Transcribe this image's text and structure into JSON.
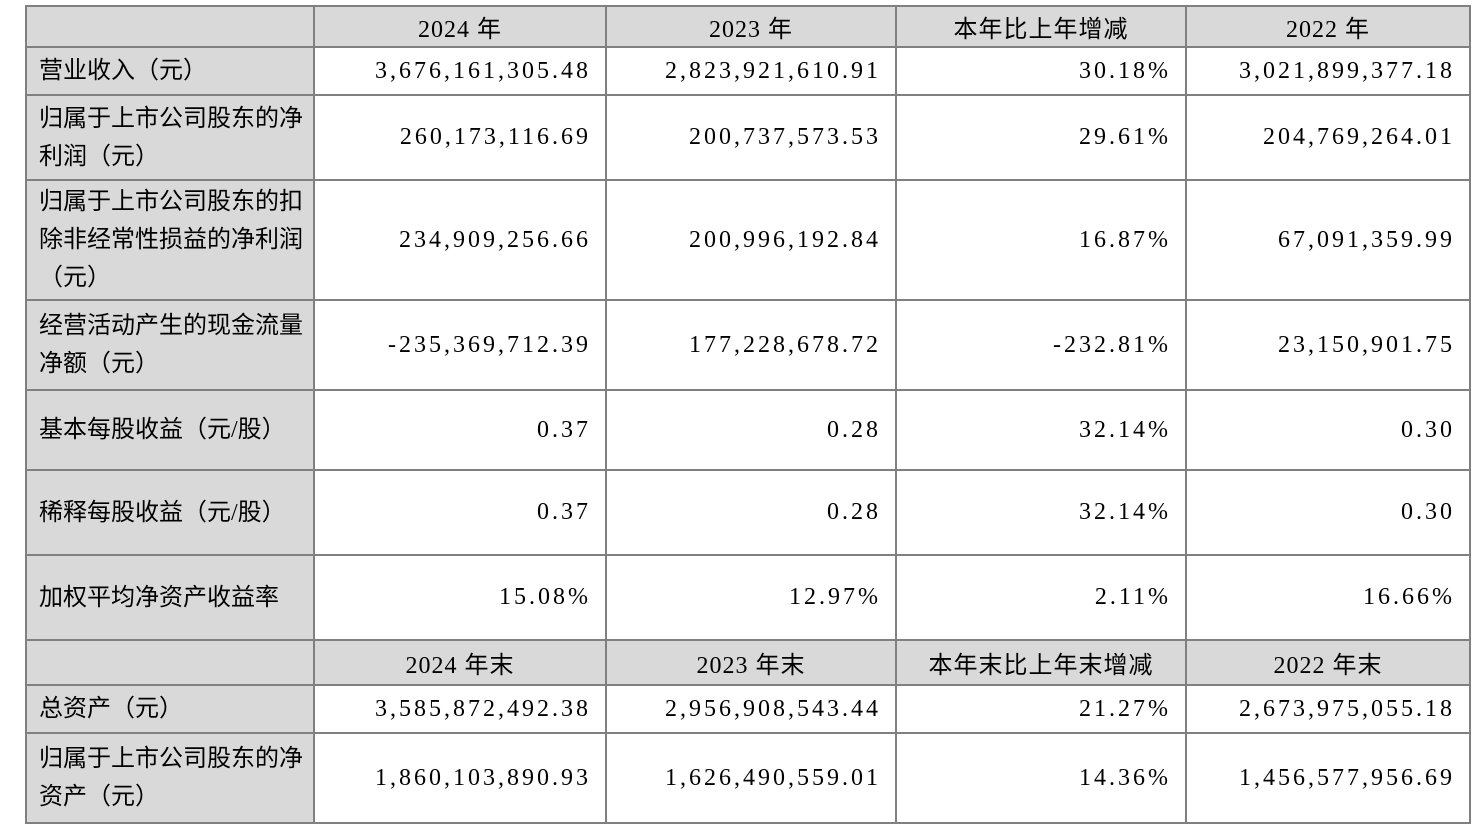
{
  "colors": {
    "header_bg": "#d9d9d9",
    "label_bg": "#d9d9d9",
    "border": "#808080",
    "cell_bg": "#ffffff",
    "text": "#000000"
  },
  "table": {
    "sections": [
      {
        "header": {
          "label": "",
          "cols": [
            "2024 年",
            "2023 年",
            "本年比上年增减",
            "2022 年"
          ]
        },
        "rows": [
          {
            "label": "营业收入（元）",
            "values": [
              "3,676,161,305.48",
              "2,823,921,610.91",
              "30.18%",
              "3,021,899,377.18"
            ]
          },
          {
            "label": "归属于上市公司股东的净利润（元）",
            "values": [
              "260,173,116.69",
              "200,737,573.53",
              "29.61%",
              "204,769,264.01"
            ]
          },
          {
            "label": "归属于上市公司股东的扣除非经常性损益的净利润（元）",
            "values": [
              "234,909,256.66",
              "200,996,192.84",
              "16.87%",
              "67,091,359.99"
            ]
          },
          {
            "label": "经营活动产生的现金流量净额（元）",
            "values": [
              "-235,369,712.39",
              "177,228,678.72",
              "-232.81%",
              "23,150,901.75"
            ]
          },
          {
            "label": "基本每股收益（元/股）",
            "values": [
              "0.37",
              "0.28",
              "32.14%",
              "0.30"
            ]
          },
          {
            "label": "稀释每股收益（元/股）",
            "values": [
              "0.37",
              "0.28",
              "32.14%",
              "0.30"
            ]
          },
          {
            "label": "加权平均净资产收益率",
            "values": [
              "15.08%",
              "12.97%",
              "2.11%",
              "16.66%"
            ]
          }
        ]
      },
      {
        "header": {
          "label": "",
          "cols": [
            "2024 年末",
            "2023 年末",
            "本年末比上年末增减",
            "2022 年末"
          ]
        },
        "rows": [
          {
            "label": "总资产（元）",
            "values": [
              "3,585,872,492.38",
              "2,956,908,543.44",
              "21.27%",
              "2,673,975,055.18"
            ]
          },
          {
            "label": "归属于上市公司股东的净资产（元）",
            "values": [
              "1,860,103,890.93",
              "1,626,490,559.01",
              "14.36%",
              "1,456,577,956.69"
            ]
          }
        ]
      }
    ]
  }
}
